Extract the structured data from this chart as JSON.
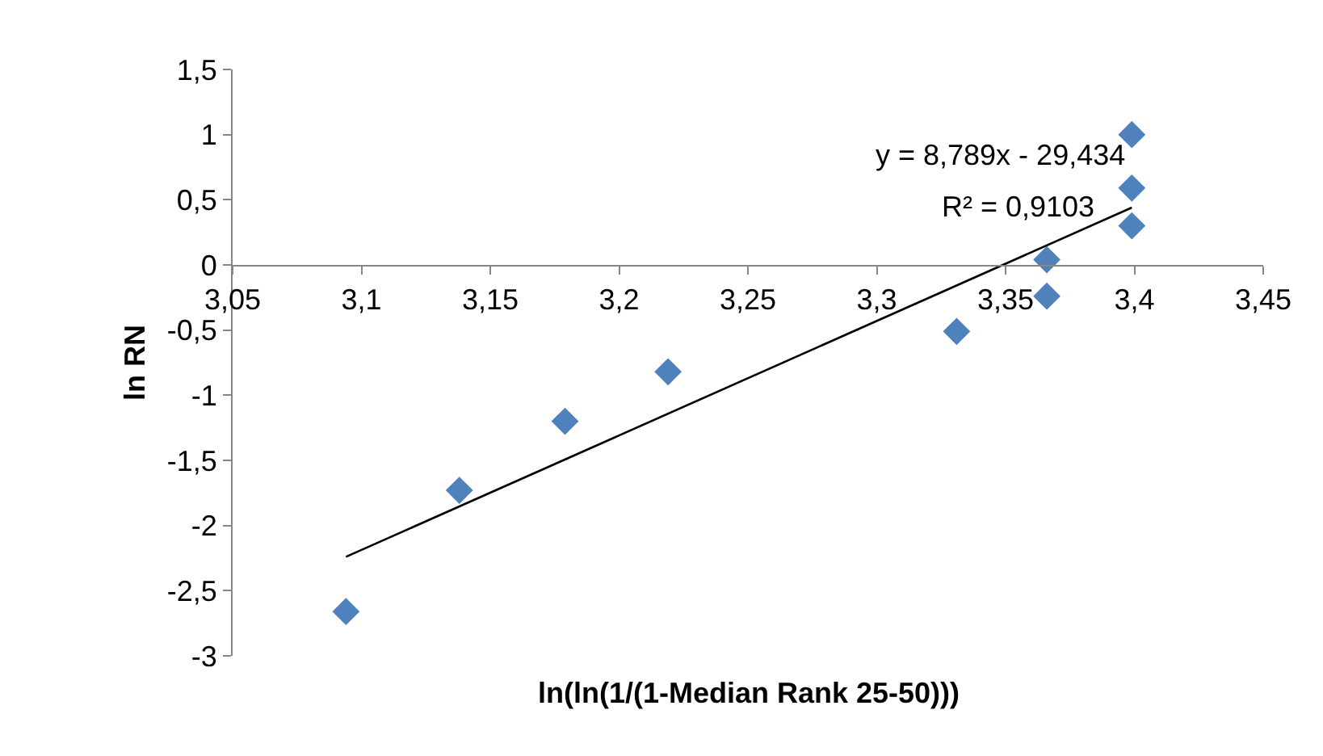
{
  "chart_data": {
    "type": "scatter",
    "xlabel": "ln(ln(1/(1-Median Rank 25-50)))",
    "ylabel": "ln RN",
    "series": [
      {
        "color": "#4f81bd",
        "marker": "diamond",
        "x": [
          3.094,
          3.138,
          3.179,
          3.219,
          3.331,
          3.366,
          3.366,
          3.399,
          3.399,
          3.399
        ],
        "values": [
          -2.66,
          -1.73,
          -1.2,
          -0.82,
          -0.51,
          -0.24,
          0.04,
          0.3,
          0.59,
          1.0
        ]
      },
      {
        "type": "line",
        "color": "#000000",
        "marker": "none",
        "x": [
          3.094,
          3.399
        ],
        "values": [
          -2.24,
          0.44
        ]
      }
    ],
    "annotations": [
      "y = 8,789x - 29,434",
      "R² = 0,9103"
    ],
    "xlim": [
      3.05,
      3.45
    ],
    "xticks": [
      {
        "value": 3.05,
        "label": "3,05"
      },
      {
        "value": 3.1,
        "label": "3,1"
      },
      {
        "value": 3.15,
        "label": "3,15"
      },
      {
        "value": 3.2,
        "label": "3,2"
      },
      {
        "value": 3.25,
        "label": "3,25"
      },
      {
        "value": 3.3,
        "label": "3,3"
      },
      {
        "value": 3.35,
        "label": "3,35"
      },
      {
        "value": 3.4,
        "label": "3,4"
      },
      {
        "value": 3.45,
        "label": "3,45"
      }
    ],
    "ylim": [
      -3,
      1.5
    ],
    "yticks": [
      {
        "value": -3,
        "label": "-3"
      },
      {
        "value": -2.5,
        "label": "-2,5"
      },
      {
        "value": -2,
        "label": "-2"
      },
      {
        "value": -1.5,
        "label": "-1,5"
      },
      {
        "value": -1,
        "label": "-1"
      },
      {
        "value": -0.5,
        "label": "-0,5"
      },
      {
        "value": 0,
        "label": "0"
      },
      {
        "value": 0.5,
        "label": "0,5"
      },
      {
        "value": 1,
        "label": "1"
      },
      {
        "value": 1.5,
        "label": "1,5"
      }
    ],
    "tick_labels": true
  }
}
